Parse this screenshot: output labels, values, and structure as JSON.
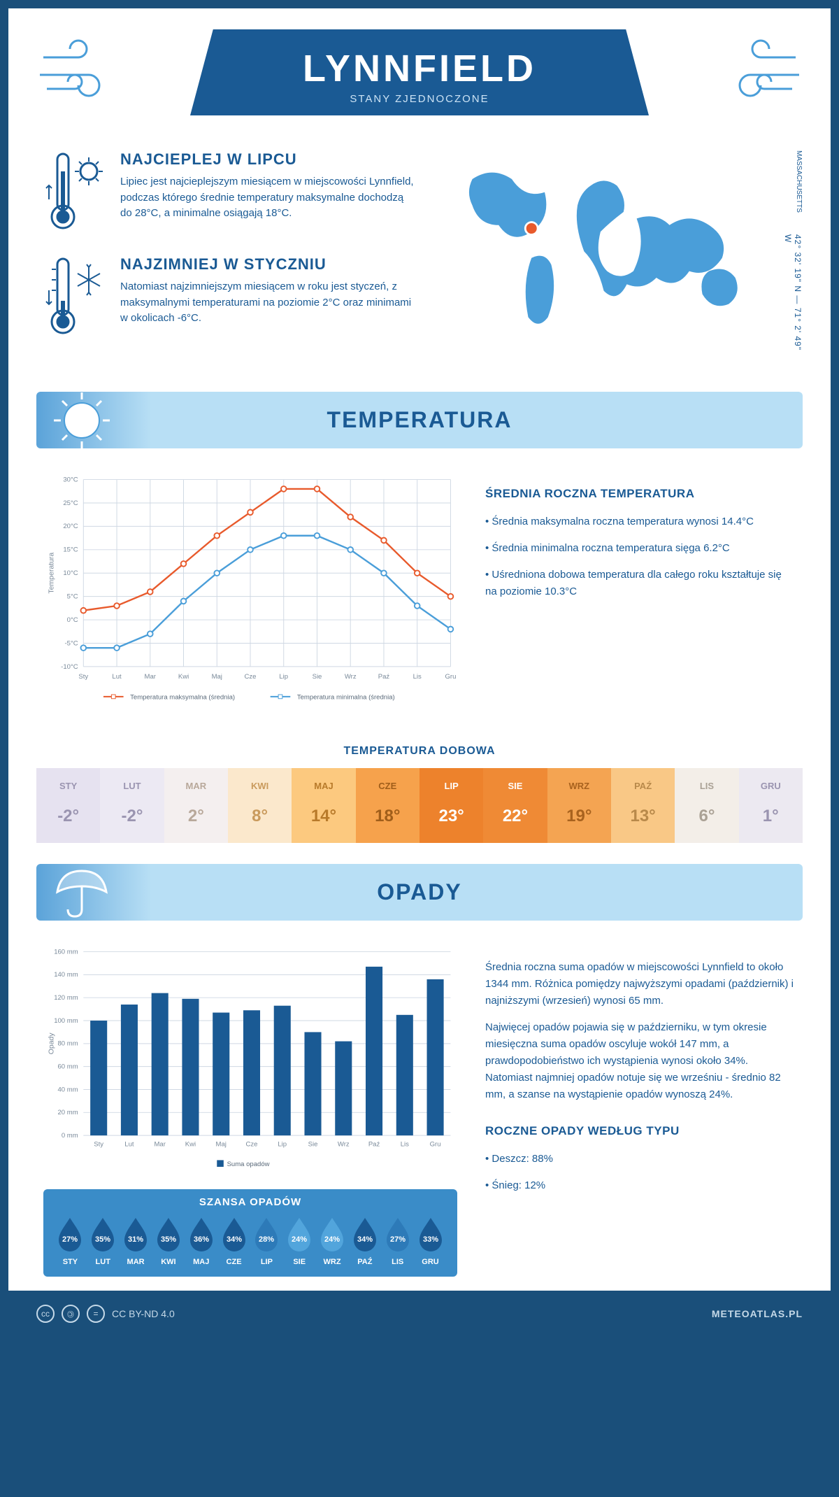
{
  "header": {
    "city": "LYNNFIELD",
    "country": "STANY ZJEDNOCZONE"
  },
  "coords": "42° 32' 19\" N — 71° 2' 49\" W",
  "state": "MASSACHUSETTS",
  "warmest": {
    "title": "NAJCIEPLEJ W LIPCU",
    "text": "Lipiec jest najcieplejszym miesiącem w miejscowości Lynnfield, podczas którego średnie temperatury maksymalne dochodzą do 28°C, a minimalne osiągają 18°C."
  },
  "coldest": {
    "title": "NAJZIMNIEJ W STYCZNIU",
    "text": "Natomiast najzimniejszym miesiącem w roku jest styczeń, z maksymalnymi temperaturami na poziomie 2°C oraz minimami w okolicach -6°C."
  },
  "temp_section": {
    "heading": "TEMPERATURA",
    "summary_title": "ŚREDNIA ROCZNA TEMPERATURA",
    "bullets": [
      "• Średnia maksymalna roczna temperatura wynosi 14.4°C",
      "• Średnia minimalna roczna temperatura sięga 6.2°C",
      "• Uśredniona dobowa temperatura dla całego roku kształtuje się na poziomie 10.3°C"
    ],
    "chart": {
      "months": [
        "Sty",
        "Lut",
        "Mar",
        "Kwi",
        "Maj",
        "Cze",
        "Lip",
        "Sie",
        "Wrz",
        "Paź",
        "Lis",
        "Gru"
      ],
      "max": [
        2,
        3,
        6,
        12,
        18,
        23,
        28,
        28,
        22,
        17,
        10,
        5
      ],
      "min": [
        -6,
        -6,
        -3,
        4,
        10,
        15,
        18,
        18,
        15,
        10,
        3,
        -2
      ],
      "ylabel": "Temperatura",
      "yticks": [
        -10,
        -5,
        0,
        5,
        10,
        15,
        20,
        25,
        30
      ],
      "ytick_labels": [
        "-10°C",
        "-5°C",
        "0°C",
        "5°C",
        "10°C",
        "15°C",
        "20°C",
        "25°C",
        "30°C"
      ],
      "legend_max": "Temperatura maksymalna (średnia)",
      "legend_min": "Temperatura minimalna (średnia)",
      "color_max": "#e85a2c",
      "color_min": "#4a9ed9",
      "grid_color": "#cfd8e3",
      "tick_fontsize": 10,
      "label_fontsize": 11
    },
    "daily_title": "TEMPERATURA DOBOWA",
    "daily": {
      "months": [
        "STY",
        "LUT",
        "MAR",
        "KWI",
        "MAJ",
        "CZE",
        "LIP",
        "SIE",
        "WRZ",
        "PAŹ",
        "LIS",
        "GRU"
      ],
      "values": [
        "-2°",
        "-2°",
        "2°",
        "8°",
        "14°",
        "18°",
        "23°",
        "22°",
        "19°",
        "13°",
        "6°",
        "1°"
      ],
      "bg": [
        "#e6e2f0",
        "#ece9f3",
        "#f4efef",
        "#fbe8cc",
        "#fcc97f",
        "#f6a24c",
        "#ed822c",
        "#ef8a35",
        "#f4a452",
        "#f9c886",
        "#f3eee8",
        "#ece9f1"
      ],
      "text": [
        "#9a94b0",
        "#9a94b0",
        "#b8a89a",
        "#c99a5c",
        "#b87a2a",
        "#a05e1a",
        "#ffffff",
        "#ffffff",
        "#a8621e",
        "#b8894a",
        "#aaa195",
        "#9a94b0"
      ]
    }
  },
  "rain_section": {
    "heading": "OPADY",
    "para1": "Średnia roczna suma opadów w miejscowości Lynnfield to około 1344 mm. Różnica pomiędzy najwyższymi opadami (październik) i najniższymi (wrzesień) wynosi 65 mm.",
    "para2": "Najwięcej opadów pojawia się w październiku, w tym okresie miesięczna suma opadów oscyluje wokół 147 mm, a prawdopodobieństwo ich wystąpienia wynosi około 34%. Natomiast najmniej opadów notuje się we wrześniu - średnio 82 mm, a szanse na wystąpienie opadów wynoszą 24%.",
    "type_title": "ROCZNE OPADY WEDŁUG TYPU",
    "type_bullets": [
      "• Deszcz: 88%",
      "• Śnieg: 12%"
    ],
    "chart": {
      "months": [
        "Sty",
        "Lut",
        "Mar",
        "Kwi",
        "Maj",
        "Cze",
        "Lip",
        "Sie",
        "Wrz",
        "Paź",
        "Lis",
        "Gru"
      ],
      "values": [
        100,
        114,
        124,
        119,
        107,
        109,
        113,
        90,
        82,
        147,
        105,
        136
      ],
      "ylabel": "Opady",
      "yticks": [
        0,
        20,
        40,
        60,
        80,
        100,
        120,
        140,
        160
      ],
      "ytick_labels": [
        "0 mm",
        "20 mm",
        "40 mm",
        "60 mm",
        "80 mm",
        "100 mm",
        "120 mm",
        "140 mm",
        "160 mm"
      ],
      "legend": "Suma opadów",
      "bar_color": "#1a5a94",
      "grid_color": "#cfd8e3"
    },
    "chance": {
      "title": "SZANSA OPADÓW",
      "months": [
        "STY",
        "LUT",
        "MAR",
        "KWI",
        "MAJ",
        "CZE",
        "LIP",
        "SIE",
        "WRZ",
        "PAŹ",
        "LIS",
        "GRU"
      ],
      "pct": [
        "27%",
        "35%",
        "31%",
        "35%",
        "36%",
        "34%",
        "28%",
        "24%",
        "24%",
        "34%",
        "27%",
        "33%"
      ],
      "colors": [
        "#1a5a94",
        "#1a5a94",
        "#1a5a94",
        "#1a5a94",
        "#1a5a94",
        "#1a5a94",
        "#2d7ab8",
        "#52a5dc",
        "#52a5dc",
        "#1a5a94",
        "#2d7ab8",
        "#1a5a94"
      ]
    }
  },
  "footer": {
    "license": "CC BY-ND 4.0",
    "site": "METEOATLAS.PL"
  }
}
